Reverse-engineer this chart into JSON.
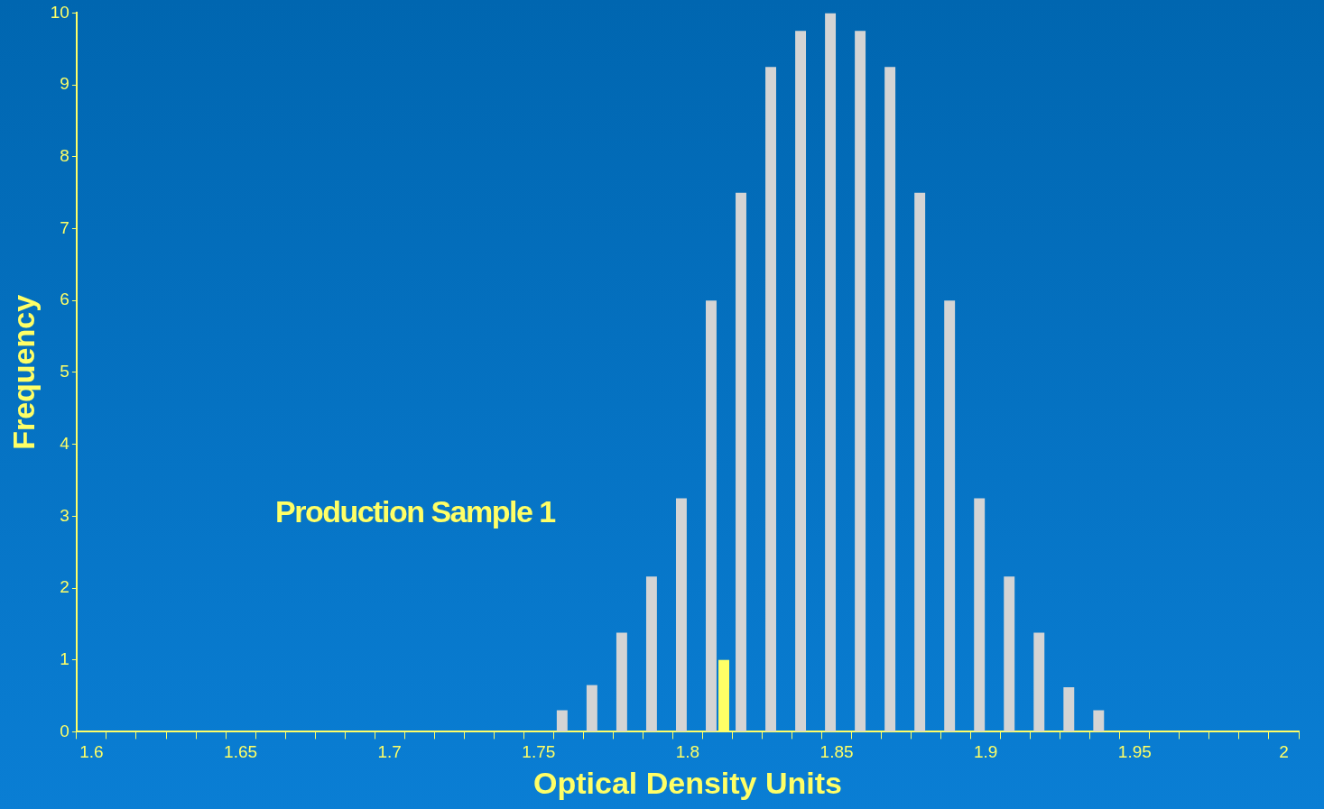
{
  "chart_data": {
    "type": "bar",
    "xlabel": "Optical Density Units",
    "ylabel": "Frequency",
    "annotations": [
      "Production Sample 1"
    ],
    "categories": [
      "1.6",
      null,
      null,
      null,
      null,
      "1.65",
      null,
      null,
      null,
      null,
      "1.7",
      null,
      null,
      null,
      null,
      "1.75",
      null,
      null,
      null,
      null,
      "1.8",
      null,
      null,
      null,
      null,
      "1.85",
      null,
      null,
      null,
      null,
      "1.9",
      null,
      null,
      null,
      null,
      "1.95",
      null,
      null,
      null,
      null,
      "2"
    ],
    "series": [
      {
        "color": "#d4d4d4",
        "values": [
          null,
          null,
          null,
          null,
          null,
          null,
          null,
          null,
          null,
          null,
          null,
          null,
          null,
          null,
          null,
          null,
          0.3,
          0.65,
          1.38,
          2.16,
          3.25,
          6,
          7.5,
          9.25,
          9.75,
          10,
          9.75,
          9.25,
          7.5,
          6,
          3.25,
          2.16,
          1.38,
          0.62,
          0.3,
          null,
          null,
          null,
          null,
          null,
          null
        ]
      },
      {
        "color": "#ffff66",
        "values": [
          null,
          null,
          null,
          null,
          null,
          null,
          null,
          null,
          null,
          null,
          null,
          null,
          null,
          null,
          null,
          null,
          null,
          null,
          null,
          null,
          null,
          1,
          null,
          null,
          null,
          null,
          null,
          null,
          null,
          null,
          null,
          null,
          null,
          null,
          null,
          null,
          null,
          null,
          null,
          null,
          null
        ]
      }
    ],
    "ylim": [
      0,
      10
    ],
    "yticks": [
      0,
      1,
      2,
      3,
      4,
      5,
      6,
      7,
      8,
      9,
      10
    ],
    "grid": false,
    "legend": false
  }
}
